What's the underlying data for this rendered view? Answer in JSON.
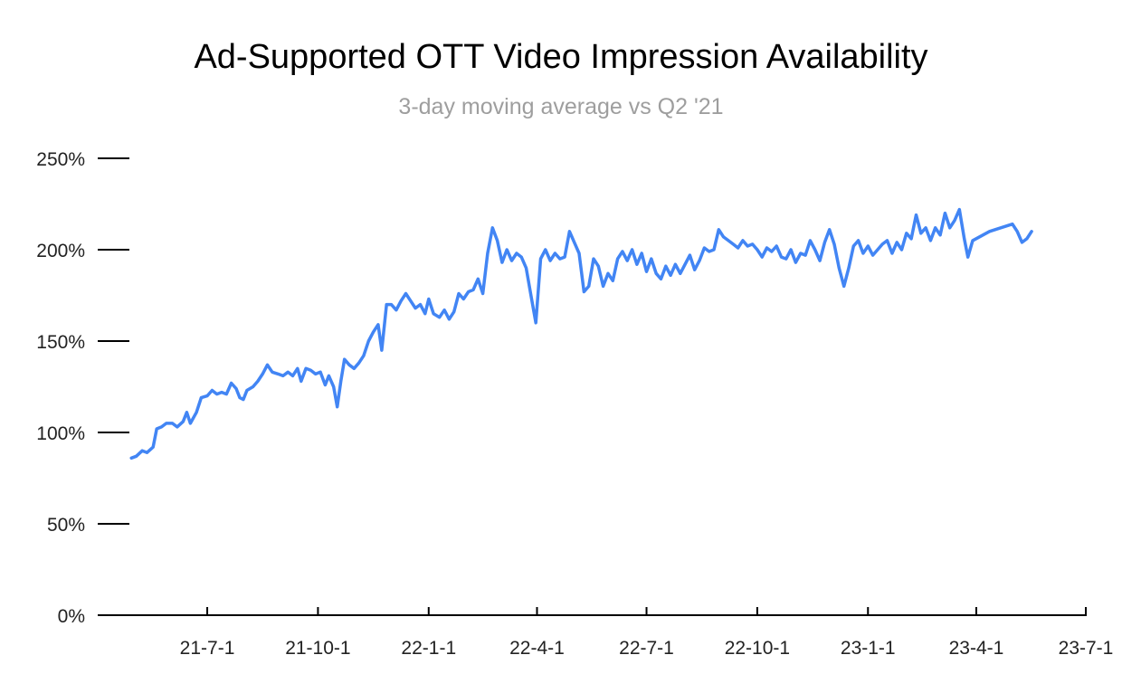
{
  "chart_data": {
    "type": "line",
    "title": "Ad-Supported OTT Video Impression Availability",
    "subtitle": "3-day moving average vs Q2 '21",
    "xlabel": "",
    "ylabel": "",
    "y_unit": "%",
    "ylim": [
      0,
      250
    ],
    "yticks": [
      0,
      50,
      100,
      150,
      200,
      250
    ],
    "ytick_labels": [
      "0%",
      "50%",
      "100%",
      "150%",
      "200%",
      "250%"
    ],
    "xlim": [
      "2021-04-01",
      "2023-07-01"
    ],
    "xticks": [
      "2021-07-01",
      "2021-10-01",
      "2022-01-01",
      "2022-04-01",
      "2022-07-01",
      "2022-10-01",
      "2023-01-01",
      "2023-04-01",
      "2023-07-01"
    ],
    "xtick_labels": [
      "21-7-1",
      "21-10-1",
      "22-1-1",
      "22-4-1",
      "22-7-1",
      "22-10-1",
      "23-1-1",
      "23-4-1",
      "23-7-1"
    ],
    "grid": false,
    "legend": "none",
    "colors": {
      "line": "#4285f4",
      "axis": "#000000"
    },
    "series": [
      {
        "values": [
          [
            "2021-04-29",
            86
          ],
          [
            "2021-05-03",
            87
          ],
          [
            "2021-05-08",
            90
          ],
          [
            "2021-05-12",
            89
          ],
          [
            "2021-05-17",
            92
          ],
          [
            "2021-05-20",
            102
          ],
          [
            "2021-05-24",
            103
          ],
          [
            "2021-05-28",
            105
          ],
          [
            "2021-06-02",
            105
          ],
          [
            "2021-06-06",
            103
          ],
          [
            "2021-06-11",
            106
          ],
          [
            "2021-06-14",
            111
          ],
          [
            "2021-06-17",
            105
          ],
          [
            "2021-06-22",
            111
          ],
          [
            "2021-06-26",
            119
          ],
          [
            "2021-07-01",
            120
          ],
          [
            "2021-07-05",
            123
          ],
          [
            "2021-07-09",
            121
          ],
          [
            "2021-07-13",
            122
          ],
          [
            "2021-07-17",
            121
          ],
          [
            "2021-07-21",
            127
          ],
          [
            "2021-07-25",
            124
          ],
          [
            "2021-07-28",
            119
          ],
          [
            "2021-07-31",
            118
          ],
          [
            "2021-08-03",
            123
          ],
          [
            "2021-08-08",
            125
          ],
          [
            "2021-08-12",
            128
          ],
          [
            "2021-08-16",
            132
          ],
          [
            "2021-08-20",
            137
          ],
          [
            "2021-08-24",
            133
          ],
          [
            "2021-08-29",
            132
          ],
          [
            "2021-09-02",
            131
          ],
          [
            "2021-09-06",
            133
          ],
          [
            "2021-09-10",
            131
          ],
          [
            "2021-09-14",
            135
          ],
          [
            "2021-09-17",
            128
          ],
          [
            "2021-09-21",
            135
          ],
          [
            "2021-09-25",
            134
          ],
          [
            "2021-09-29",
            132
          ],
          [
            "2021-10-03",
            133
          ],
          [
            "2021-10-07",
            126
          ],
          [
            "2021-10-10",
            131
          ],
          [
            "2021-10-14",
            125
          ],
          [
            "2021-10-17",
            114
          ],
          [
            "2021-10-20",
            128
          ],
          [
            "2021-10-23",
            140
          ],
          [
            "2021-10-27",
            137
          ],
          [
            "2021-10-31",
            135
          ],
          [
            "2021-11-04",
            138
          ],
          [
            "2021-11-08",
            142
          ],
          [
            "2021-11-12",
            150
          ],
          [
            "2021-11-16",
            155
          ],
          [
            "2021-11-20",
            159
          ],
          [
            "2021-11-23",
            145
          ],
          [
            "2021-11-27",
            170
          ],
          [
            "2021-12-01",
            170
          ],
          [
            "2021-12-05",
            167
          ],
          [
            "2021-12-09",
            172
          ],
          [
            "2021-12-13",
            176
          ],
          [
            "2021-12-17",
            172
          ],
          [
            "2021-12-21",
            168
          ],
          [
            "2021-12-25",
            170
          ],
          [
            "2021-12-29",
            165
          ],
          [
            "2022-01-01",
            173
          ],
          [
            "2022-01-05",
            165
          ],
          [
            "2022-01-10",
            163
          ],
          [
            "2022-01-14",
            167
          ],
          [
            "2022-01-18",
            162
          ],
          [
            "2022-01-22",
            166
          ],
          [
            "2022-01-26",
            176
          ],
          [
            "2022-01-30",
            173
          ],
          [
            "2022-02-03",
            177
          ],
          [
            "2022-02-07",
            178
          ],
          [
            "2022-02-11",
            184
          ],
          [
            "2022-02-15",
            176
          ],
          [
            "2022-02-19",
            198
          ],
          [
            "2022-02-23",
            212
          ],
          [
            "2022-02-27",
            205
          ],
          [
            "2022-03-03",
            193
          ],
          [
            "2022-03-07",
            200
          ],
          [
            "2022-03-11",
            194
          ],
          [
            "2022-03-15",
            198
          ],
          [
            "2022-03-19",
            196
          ],
          [
            "2022-03-23",
            190
          ],
          [
            "2022-03-27",
            175
          ],
          [
            "2022-03-31",
            160
          ],
          [
            "2022-04-04",
            195
          ],
          [
            "2022-04-08",
            200
          ],
          [
            "2022-04-12",
            194
          ],
          [
            "2022-04-16",
            198
          ],
          [
            "2022-04-20",
            195
          ],
          [
            "2022-04-24",
            196
          ],
          [
            "2022-04-28",
            210
          ],
          [
            "2022-05-02",
            204
          ],
          [
            "2022-05-06",
            198
          ],
          [
            "2022-05-10",
            177
          ],
          [
            "2022-05-14",
            180
          ],
          [
            "2022-05-18",
            195
          ],
          [
            "2022-05-22",
            191
          ],
          [
            "2022-05-26",
            180
          ],
          [
            "2022-05-30",
            187
          ],
          [
            "2022-06-03",
            183
          ],
          [
            "2022-06-07",
            195
          ],
          [
            "2022-06-11",
            199
          ],
          [
            "2022-06-15",
            194
          ],
          [
            "2022-06-19",
            200
          ],
          [
            "2022-06-23",
            192
          ],
          [
            "2022-06-27",
            198
          ],
          [
            "2022-07-01",
            188
          ],
          [
            "2022-07-05",
            195
          ],
          [
            "2022-07-09",
            187
          ],
          [
            "2022-07-13",
            184
          ],
          [
            "2022-07-17",
            191
          ],
          [
            "2022-07-21",
            186
          ],
          [
            "2022-07-25",
            192
          ],
          [
            "2022-07-29",
            187
          ],
          [
            "2022-08-02",
            192
          ],
          [
            "2022-08-06",
            197
          ],
          [
            "2022-08-10",
            189
          ],
          [
            "2022-08-14",
            194
          ],
          [
            "2022-08-18",
            201
          ],
          [
            "2022-08-22",
            199
          ],
          [
            "2022-08-26",
            200
          ],
          [
            "2022-08-30",
            211
          ],
          [
            "2022-09-03",
            207
          ],
          [
            "2022-09-07",
            205
          ],
          [
            "2022-09-11",
            203
          ],
          [
            "2022-09-15",
            201
          ],
          [
            "2022-09-19",
            205
          ],
          [
            "2022-09-23",
            202
          ],
          [
            "2022-09-27",
            203
          ],
          [
            "2022-10-01",
            200
          ],
          [
            "2022-10-05",
            196
          ],
          [
            "2022-10-09",
            201
          ],
          [
            "2022-10-13",
            199
          ],
          [
            "2022-10-17",
            202
          ],
          [
            "2022-10-21",
            196
          ],
          [
            "2022-10-25",
            195
          ],
          [
            "2022-10-29",
            200
          ],
          [
            "2022-11-02",
            193
          ],
          [
            "2022-11-06",
            198
          ],
          [
            "2022-11-10",
            197
          ],
          [
            "2022-11-14",
            205
          ],
          [
            "2022-11-18",
            200
          ],
          [
            "2022-11-22",
            194
          ],
          [
            "2022-11-26",
            204
          ],
          [
            "2022-11-30",
            211
          ],
          [
            "2022-12-04",
            203
          ],
          [
            "2022-12-08",
            190
          ],
          [
            "2022-12-12",
            180
          ],
          [
            "2022-12-16",
            190
          ],
          [
            "2022-12-20",
            202
          ],
          [
            "2022-12-24",
            205
          ],
          [
            "2022-12-28",
            198
          ],
          [
            "2023-01-01",
            202
          ],
          [
            "2023-01-05",
            197
          ],
          [
            "2023-01-09",
            200
          ],
          [
            "2023-01-13",
            203
          ],
          [
            "2023-01-17",
            205
          ],
          [
            "2023-01-21",
            198
          ],
          [
            "2023-01-25",
            204
          ],
          [
            "2023-01-29",
            200
          ],
          [
            "2023-02-02",
            209
          ],
          [
            "2023-02-06",
            206
          ],
          [
            "2023-02-10",
            219
          ],
          [
            "2023-02-14",
            209
          ],
          [
            "2023-02-18",
            212
          ],
          [
            "2023-02-22",
            205
          ],
          [
            "2023-02-26",
            212
          ],
          [
            "2023-03-02",
            208
          ],
          [
            "2023-03-06",
            220
          ],
          [
            "2023-03-10",
            212
          ],
          [
            "2023-03-14",
            216
          ],
          [
            "2023-03-18",
            222
          ],
          [
            "2023-03-22",
            206
          ],
          [
            "2023-03-25",
            196
          ],
          [
            "2023-03-29",
            205
          ],
          [
            "2023-04-12",
            210
          ],
          [
            "2023-05-01",
            214
          ],
          [
            "2023-05-05",
            210
          ],
          [
            "2023-05-09",
            204
          ],
          [
            "2023-05-13",
            206
          ],
          [
            "2023-05-17",
            210
          ]
        ]
      }
    ]
  }
}
